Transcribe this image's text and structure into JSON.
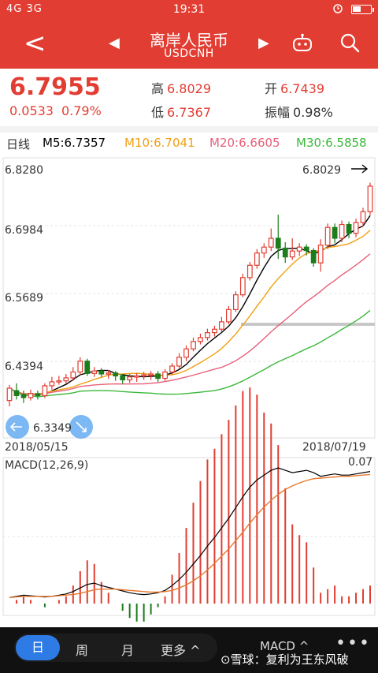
{
  "status": {
    "left": "4G 3G",
    "time": "19:31"
  },
  "nav": {
    "title": "离岸人民币",
    "subtitle": "USDCNH",
    "back_glyph": "<",
    "prev_glyph": "◀",
    "next_glyph": "▶"
  },
  "quote": {
    "price": "6.7955",
    "change": "0.0533",
    "change_pct": "0.79%",
    "high_label": "高",
    "high": "6.8029",
    "low_label": "低",
    "low": "6.7367",
    "open_label": "开",
    "open": "6.7439",
    "amp_label": "振幅",
    "amp": "0.98%"
  },
  "ma": {
    "period": "日线",
    "m5": "M5:6.7357",
    "m10": "M10:6.7041",
    "m20": "M20:6.6605",
    "m30": "M30:6.5858"
  },
  "chart_data": {
    "type": "candlestick",
    "ylim": [
      6.3,
      6.828
    ],
    "y_ticks": [
      "6.8280",
      "6.6984",
      "6.5689",
      "6.4394"
    ],
    "start_date": "2018/05/15",
    "end_date": "2018/07/19",
    "max_label": "6.8029",
    "min_label": "6.3349",
    "colors": {
      "up": "#e23d32",
      "down": "#1c7d1c",
      "m5": "#000000",
      "m10": "#f0a012",
      "m20": "#e8607a",
      "m30": "#3cb83c"
    },
    "candles": [
      [
        6.36,
        6.385,
        6.348,
        6.392
      ],
      [
        6.38,
        6.37,
        6.362,
        6.395
      ],
      [
        6.372,
        6.366,
        6.355,
        6.38
      ],
      [
        6.366,
        6.374,
        6.36,
        6.382
      ],
      [
        6.374,
        6.37,
        6.362,
        6.38
      ],
      [
        6.37,
        6.39,
        6.365,
        6.395
      ],
      [
        6.39,
        6.398,
        6.382,
        6.408
      ],
      [
        6.398,
        6.4,
        6.392,
        6.41
      ],
      [
        6.4,
        6.406,
        6.394,
        6.414
      ],
      [
        6.406,
        6.418,
        6.4,
        6.428
      ],
      [
        6.418,
        6.44,
        6.412,
        6.448
      ],
      [
        6.44,
        6.415,
        6.41,
        6.445
      ],
      [
        6.415,
        6.42,
        6.408,
        6.428
      ],
      [
        6.42,
        6.414,
        6.408,
        6.426
      ],
      [
        6.414,
        6.416,
        6.404,
        6.422
      ],
      [
        6.416,
        6.41,
        6.4,
        6.42
      ],
      [
        6.41,
        6.402,
        6.394,
        6.414
      ],
      [
        6.402,
        6.408,
        6.396,
        6.414
      ],
      [
        6.408,
        6.41,
        6.398,
        6.416
      ],
      [
        6.41,
        6.412,
        6.402,
        6.418
      ],
      [
        6.412,
        6.414,
        6.402,
        6.42
      ],
      [
        6.414,
        6.405,
        6.398,
        6.42
      ],
      [
        6.405,
        6.418,
        6.4,
        6.424
      ],
      [
        6.418,
        6.43,
        6.412,
        6.436
      ],
      [
        6.43,
        6.448,
        6.424,
        6.456
      ],
      [
        6.448,
        6.465,
        6.44,
        6.472
      ],
      [
        6.465,
        6.48,
        6.46,
        6.488
      ],
      [
        6.48,
        6.488,
        6.474,
        6.496
      ],
      [
        6.488,
        6.498,
        6.482,
        6.506
      ],
      [
        6.498,
        6.505,
        6.49,
        6.512
      ],
      [
        6.505,
        6.52,
        6.5,
        6.53
      ],
      [
        6.52,
        6.545,
        6.515,
        6.552
      ],
      [
        6.545,
        6.575,
        6.54,
        6.582
      ],
      [
        6.575,
        6.61,
        6.57,
        6.618
      ],
      [
        6.61,
        6.635,
        6.604,
        6.642
      ],
      [
        6.635,
        6.66,
        6.628,
        6.668
      ],
      [
        6.66,
        6.672,
        6.65,
        6.68
      ],
      [
        6.672,
        6.69,
        6.664,
        6.71
      ],
      [
        6.69,
        6.67,
        6.648,
        6.738
      ],
      [
        6.67,
        6.652,
        6.64,
        6.682
      ],
      [
        6.652,
        6.664,
        6.646,
        6.69
      ],
      [
        6.664,
        6.672,
        6.654,
        6.68
      ],
      [
        6.672,
        6.665,
        6.655,
        6.678
      ],
      [
        6.665,
        6.64,
        6.632,
        6.67
      ],
      [
        6.64,
        6.676,
        6.622,
        6.688
      ],
      [
        6.676,
        6.712,
        6.668,
        6.72
      ],
      [
        6.712,
        6.69,
        6.68,
        6.72
      ],
      [
        6.69,
        6.718,
        6.682,
        6.726
      ],
      [
        6.718,
        6.7,
        6.69,
        6.724
      ],
      [
        6.7,
        6.722,
        6.692,
        6.73
      ],
      [
        6.722,
        6.744,
        6.714,
        6.752
      ],
      [
        6.744,
        6.796,
        6.737,
        6.803
      ]
    ],
    "macd_dif": [
      0.01,
      0.012,
      0.014,
      0.013,
      0.012,
      0.011,
      0.012,
      0.014,
      0.016,
      0.02,
      0.026,
      0.032,
      0.034,
      0.03,
      0.027,
      0.024,
      0.021,
      0.018,
      0.016,
      0.015,
      0.016,
      0.018,
      0.022,
      0.03,
      0.04,
      0.052,
      0.066,
      0.08,
      0.096,
      0.11,
      0.126,
      0.142,
      0.16,
      0.178,
      0.194,
      0.206,
      0.214,
      0.222,
      0.226,
      0.222,
      0.218,
      0.22,
      0.222,
      0.218,
      0.212,
      0.214,
      0.216,
      0.214,
      0.214,
      0.216,
      0.218,
      0.22
    ],
    "macd_dea": [
      0.01,
      0.011,
      0.012,
      0.012,
      0.012,
      0.012,
      0.012,
      0.013,
      0.014,
      0.015,
      0.017,
      0.02,
      0.023,
      0.024,
      0.024,
      0.024,
      0.023,
      0.022,
      0.021,
      0.02,
      0.019,
      0.019,
      0.02,
      0.022,
      0.026,
      0.031,
      0.038,
      0.046,
      0.056,
      0.067,
      0.079,
      0.091,
      0.105,
      0.119,
      0.134,
      0.148,
      0.161,
      0.172,
      0.182,
      0.19,
      0.196,
      0.201,
      0.205,
      0.208,
      0.209,
      0.21,
      0.211,
      0.212,
      0.212,
      0.213,
      0.214,
      0.215
    ],
    "macd_label": "MACD(12,26,9)",
    "macd_value": "0.07"
  },
  "bottom": {
    "tab_day": "日",
    "tab_week": "周",
    "tab_month": "月",
    "tab_more": "更多 ^",
    "indicator": "MACD ^",
    "more_dots": "•••",
    "watermark": "⊙雪球：复利为王东风破"
  }
}
